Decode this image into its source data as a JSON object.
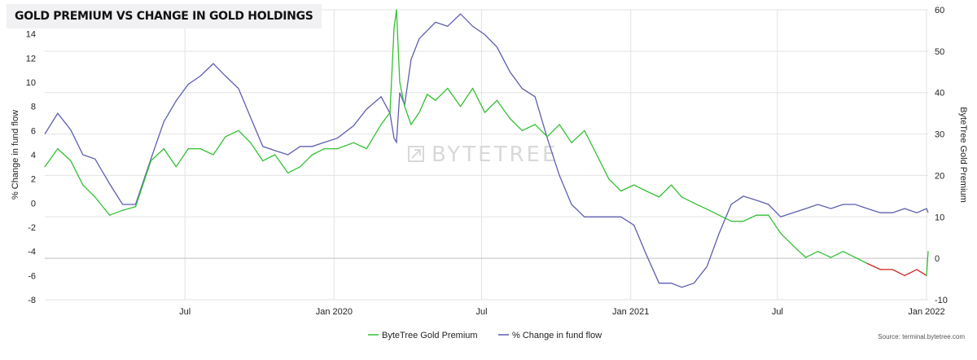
{
  "title": "GOLD PREMIUM VS CHANGE IN GOLD HOLDINGS",
  "watermark": "BYTETREE",
  "source": "Source: terminal.bytetree.com",
  "colors": {
    "premium_positive": "#33c033",
    "premium_negative": "#cc2222",
    "fund_flow": "#5e5eb0",
    "gridline": "#e3e3e3",
    "zero_line": "#bfbfbf"
  },
  "chart_data": {
    "type": "line",
    "x_ticks": [
      "Jul",
      "Jan 2020",
      "Jul",
      "Jan 2021",
      "Jul",
      "Jan 2022"
    ],
    "x_tick_dates": [
      "2019-07-01",
      "2020-01-01",
      "2020-07-01",
      "2021-01-01",
      "2021-07-01",
      "2022-01-01"
    ],
    "x_range": [
      "2019-01-09",
      "2022-01-03"
    ],
    "left_axis": {
      "label": "% Change in fund flow",
      "ticks": [
        "14",
        "12",
        "10",
        "8",
        "6",
        "4",
        "2",
        "0",
        "-2",
        "-4",
        "-6",
        "-8"
      ],
      "ylim": [
        -8,
        16
      ]
    },
    "right_axis": {
      "label": "ByteTree Gold Premium",
      "ticks": [
        "60",
        "50",
        "40",
        "30",
        "20",
        "10",
        "0",
        "-10"
      ],
      "ylim": [
        -10,
        60
      ]
    },
    "grid": true,
    "legend_position": "bottom-center",
    "series": [
      {
        "name": "ByteTree Gold Premium",
        "axis": "left",
        "x": [
          "2019-01-09",
          "2019-01-25",
          "2019-02-10",
          "2019-02-25",
          "2019-03-12",
          "2019-03-30",
          "2019-04-15",
          "2019-05-01",
          "2019-05-20",
          "2019-06-05",
          "2019-06-20",
          "2019-07-05",
          "2019-07-20",
          "2019-08-05",
          "2019-08-20",
          "2019-09-05",
          "2019-09-20",
          "2019-10-05",
          "2019-10-20",
          "2019-11-05",
          "2019-11-20",
          "2019-12-05",
          "2019-12-20",
          "2020-01-05",
          "2020-01-25",
          "2020-02-10",
          "2020-02-28",
          "2020-03-10",
          "2020-03-15",
          "2020-03-18",
          "2020-03-22",
          "2020-03-28",
          "2020-04-05",
          "2020-04-15",
          "2020-04-25",
          "2020-05-05",
          "2020-05-20",
          "2020-06-05",
          "2020-06-20",
          "2020-07-05",
          "2020-07-20",
          "2020-08-05",
          "2020-08-20",
          "2020-09-05",
          "2020-09-20",
          "2020-10-05",
          "2020-10-20",
          "2020-11-05",
          "2020-11-20",
          "2020-12-05",
          "2020-12-20",
          "2021-01-05",
          "2021-01-20",
          "2021-02-05",
          "2021-02-20",
          "2021-03-05",
          "2021-03-20",
          "2021-04-05",
          "2021-04-20",
          "2021-05-05",
          "2021-05-20",
          "2021-06-05",
          "2021-06-20",
          "2021-07-05",
          "2021-07-20",
          "2021-08-05",
          "2021-08-20",
          "2021-09-05",
          "2021-09-20",
          "2021-10-05",
          "2021-10-20",
          "2021-11-05",
          "2021-11-20",
          "2021-12-05",
          "2021-12-20",
          "2022-01-01",
          "2022-01-03"
        ],
        "values": [
          3.0,
          4.5,
          3.5,
          1.5,
          0.5,
          -1.0,
          -0.6,
          -0.3,
          3.5,
          4.5,
          3.0,
          4.5,
          4.5,
          4.0,
          5.5,
          6.0,
          5.0,
          3.5,
          4.0,
          2.5,
          3.0,
          4.0,
          4.5,
          4.5,
          5.0,
          4.5,
          6.5,
          7.5,
          14.5,
          16.0,
          10.0,
          8.0,
          6.5,
          7.5,
          9.0,
          8.5,
          9.5,
          8.0,
          9.5,
          7.5,
          8.5,
          7.0,
          6.0,
          6.5,
          5.5,
          6.5,
          5.0,
          6.0,
          4.0,
          2.0,
          1.0,
          1.5,
          1.0,
          0.5,
          1.5,
          0.5,
          0.0,
          -0.5,
          -1.0,
          -1.5,
          -1.5,
          -1.0,
          -1.0,
          -2.5,
          -3.5,
          -4.5,
          -4.0,
          -4.5,
          -4.0,
          -4.5,
          -5.0,
          -5.5,
          -5.5,
          -6.0,
          -5.5,
          -6.0,
          -4.0
        ]
      },
      {
        "name": "% Change in fund flow",
        "axis": "right",
        "x": [
          "2019-01-09",
          "2019-01-25",
          "2019-02-10",
          "2019-02-25",
          "2019-03-12",
          "2019-03-30",
          "2019-04-15",
          "2019-05-01",
          "2019-05-20",
          "2019-06-05",
          "2019-06-20",
          "2019-07-05",
          "2019-07-20",
          "2019-08-05",
          "2019-08-20",
          "2019-09-05",
          "2019-09-20",
          "2019-10-05",
          "2019-10-20",
          "2019-11-05",
          "2019-11-20",
          "2019-12-05",
          "2019-12-20",
          "2020-01-05",
          "2020-01-25",
          "2020-02-10",
          "2020-02-28",
          "2020-03-10",
          "2020-03-15",
          "2020-03-18",
          "2020-03-22",
          "2020-03-28",
          "2020-04-05",
          "2020-04-15",
          "2020-04-25",
          "2020-05-05",
          "2020-05-20",
          "2020-06-05",
          "2020-06-20",
          "2020-07-05",
          "2020-07-20",
          "2020-08-05",
          "2020-08-20",
          "2020-09-05",
          "2020-09-20",
          "2020-10-05",
          "2020-10-20",
          "2020-11-05",
          "2020-11-20",
          "2020-12-05",
          "2020-12-20",
          "2021-01-05",
          "2021-01-20",
          "2021-02-05",
          "2021-02-20",
          "2021-03-05",
          "2021-03-20",
          "2021-04-05",
          "2021-04-20",
          "2021-05-05",
          "2021-05-20",
          "2021-06-05",
          "2021-06-20",
          "2021-07-05",
          "2021-07-20",
          "2021-08-05",
          "2021-08-20",
          "2021-09-05",
          "2021-09-20",
          "2021-10-05",
          "2021-10-20",
          "2021-11-05",
          "2021-11-20",
          "2021-12-05",
          "2021-12-20",
          "2022-01-01",
          "2022-01-03"
        ],
        "values": [
          30,
          35,
          31,
          25,
          24,
          18,
          13,
          13,
          24,
          33,
          38,
          42,
          44,
          47,
          44,
          41,
          34,
          27,
          26,
          25,
          27,
          27,
          28,
          29,
          32,
          36,
          39,
          35,
          29,
          28,
          40,
          37,
          48,
          53,
          55,
          57,
          56,
          59,
          56,
          54,
          51,
          45,
          41,
          39,
          29,
          20,
          13,
          10,
          10,
          10,
          10,
          8,
          1,
          -6,
          -6,
          -7,
          -6,
          -2,
          6,
          13,
          15,
          14,
          13,
          10,
          11,
          12,
          13,
          12,
          13,
          13,
          12,
          11,
          11,
          12,
          11,
          12,
          11
        ]
      }
    ]
  },
  "legend": [
    {
      "label": "ByteTree Gold Premium",
      "color": "#33c033"
    },
    {
      "label": "% Change in fund flow",
      "color": "#5e5eb0"
    }
  ]
}
